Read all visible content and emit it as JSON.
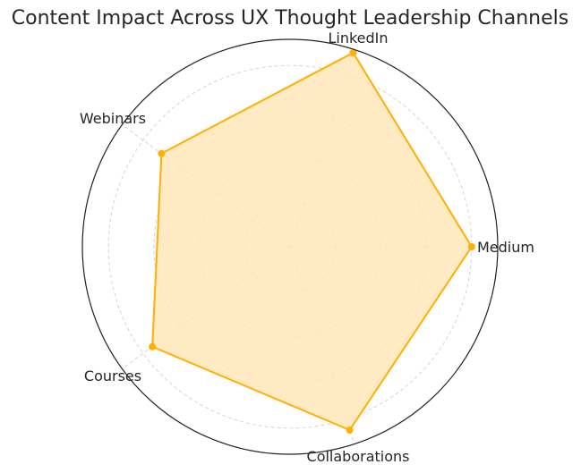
{
  "chart_data": {
    "type": "radar",
    "title": "Content Impact Across UX Thought Leadership Channels",
    "categories": [
      "Medium",
      "LinkedIn",
      "Webinars",
      "Courses",
      "Collaborations"
    ],
    "values": [
      8,
      9,
      7,
      7.5,
      8.5
    ],
    "rlim": [
      0,
      9.15
    ],
    "rgrid": [
      2,
      4,
      6,
      8
    ],
    "grid": true,
    "colors": {
      "line": "#FFB000",
      "fill": "#FFE7B8",
      "grid": "#cccccc",
      "frame": "#222222"
    }
  }
}
